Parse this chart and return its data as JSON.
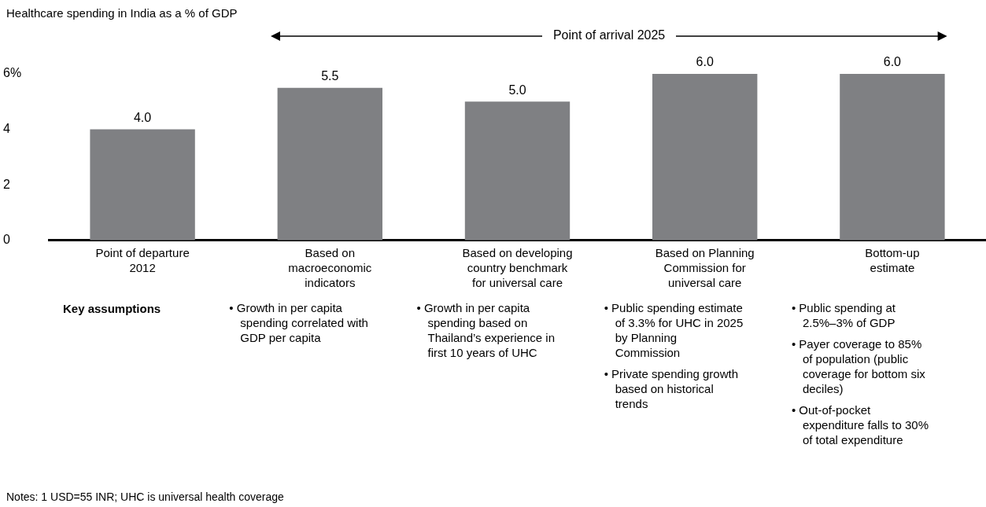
{
  "chart_data": {
    "type": "bar",
    "title": "Healthcare spending in India as a % of GDP",
    "categories": [
      "Point of departure\n2012",
      "Based on\nmacroeconomic\nindicators",
      "Based on developing\ncountry benchmark\nfor universal care",
      "Based on Planning\nCommission for\nuniversal care",
      "Bottom-up\nestimate"
    ],
    "values": [
      4.0,
      5.5,
      5.0,
      6.0,
      6.0
    ],
    "value_labels": [
      "4.0",
      "5.5",
      "5.0",
      "6.0",
      "6.0"
    ],
    "color": "#7f8083",
    "ylim": [
      0,
      6
    ],
    "yticks": [
      0,
      2,
      4,
      {
        "value": 6,
        "label": "6%"
      }
    ],
    "grid": false,
    "legend": false,
    "annotations": [
      "Point of arrival 2025",
      "Key assumptions",
      "Notes: 1 USD=55 INR; UHC is universal health coverage",
      "• Growth in per capita spending correlated with GDP per capita",
      "• Growth in per capita spending based on Thailand’s experience in first 10 years of UHC",
      "• Public spending estimate of 3.3% for UHC in 2025 by Planning Commission",
      "• Private spending growth based on historical trends",
      "• Public spending at 2.5%–3% of GDP",
      "• Payer coverage to 85% of population (public coverage for bottom six deciles)",
      "• Out-of-pocket expenditure falls to 30% of total expenditure"
    ]
  }
}
